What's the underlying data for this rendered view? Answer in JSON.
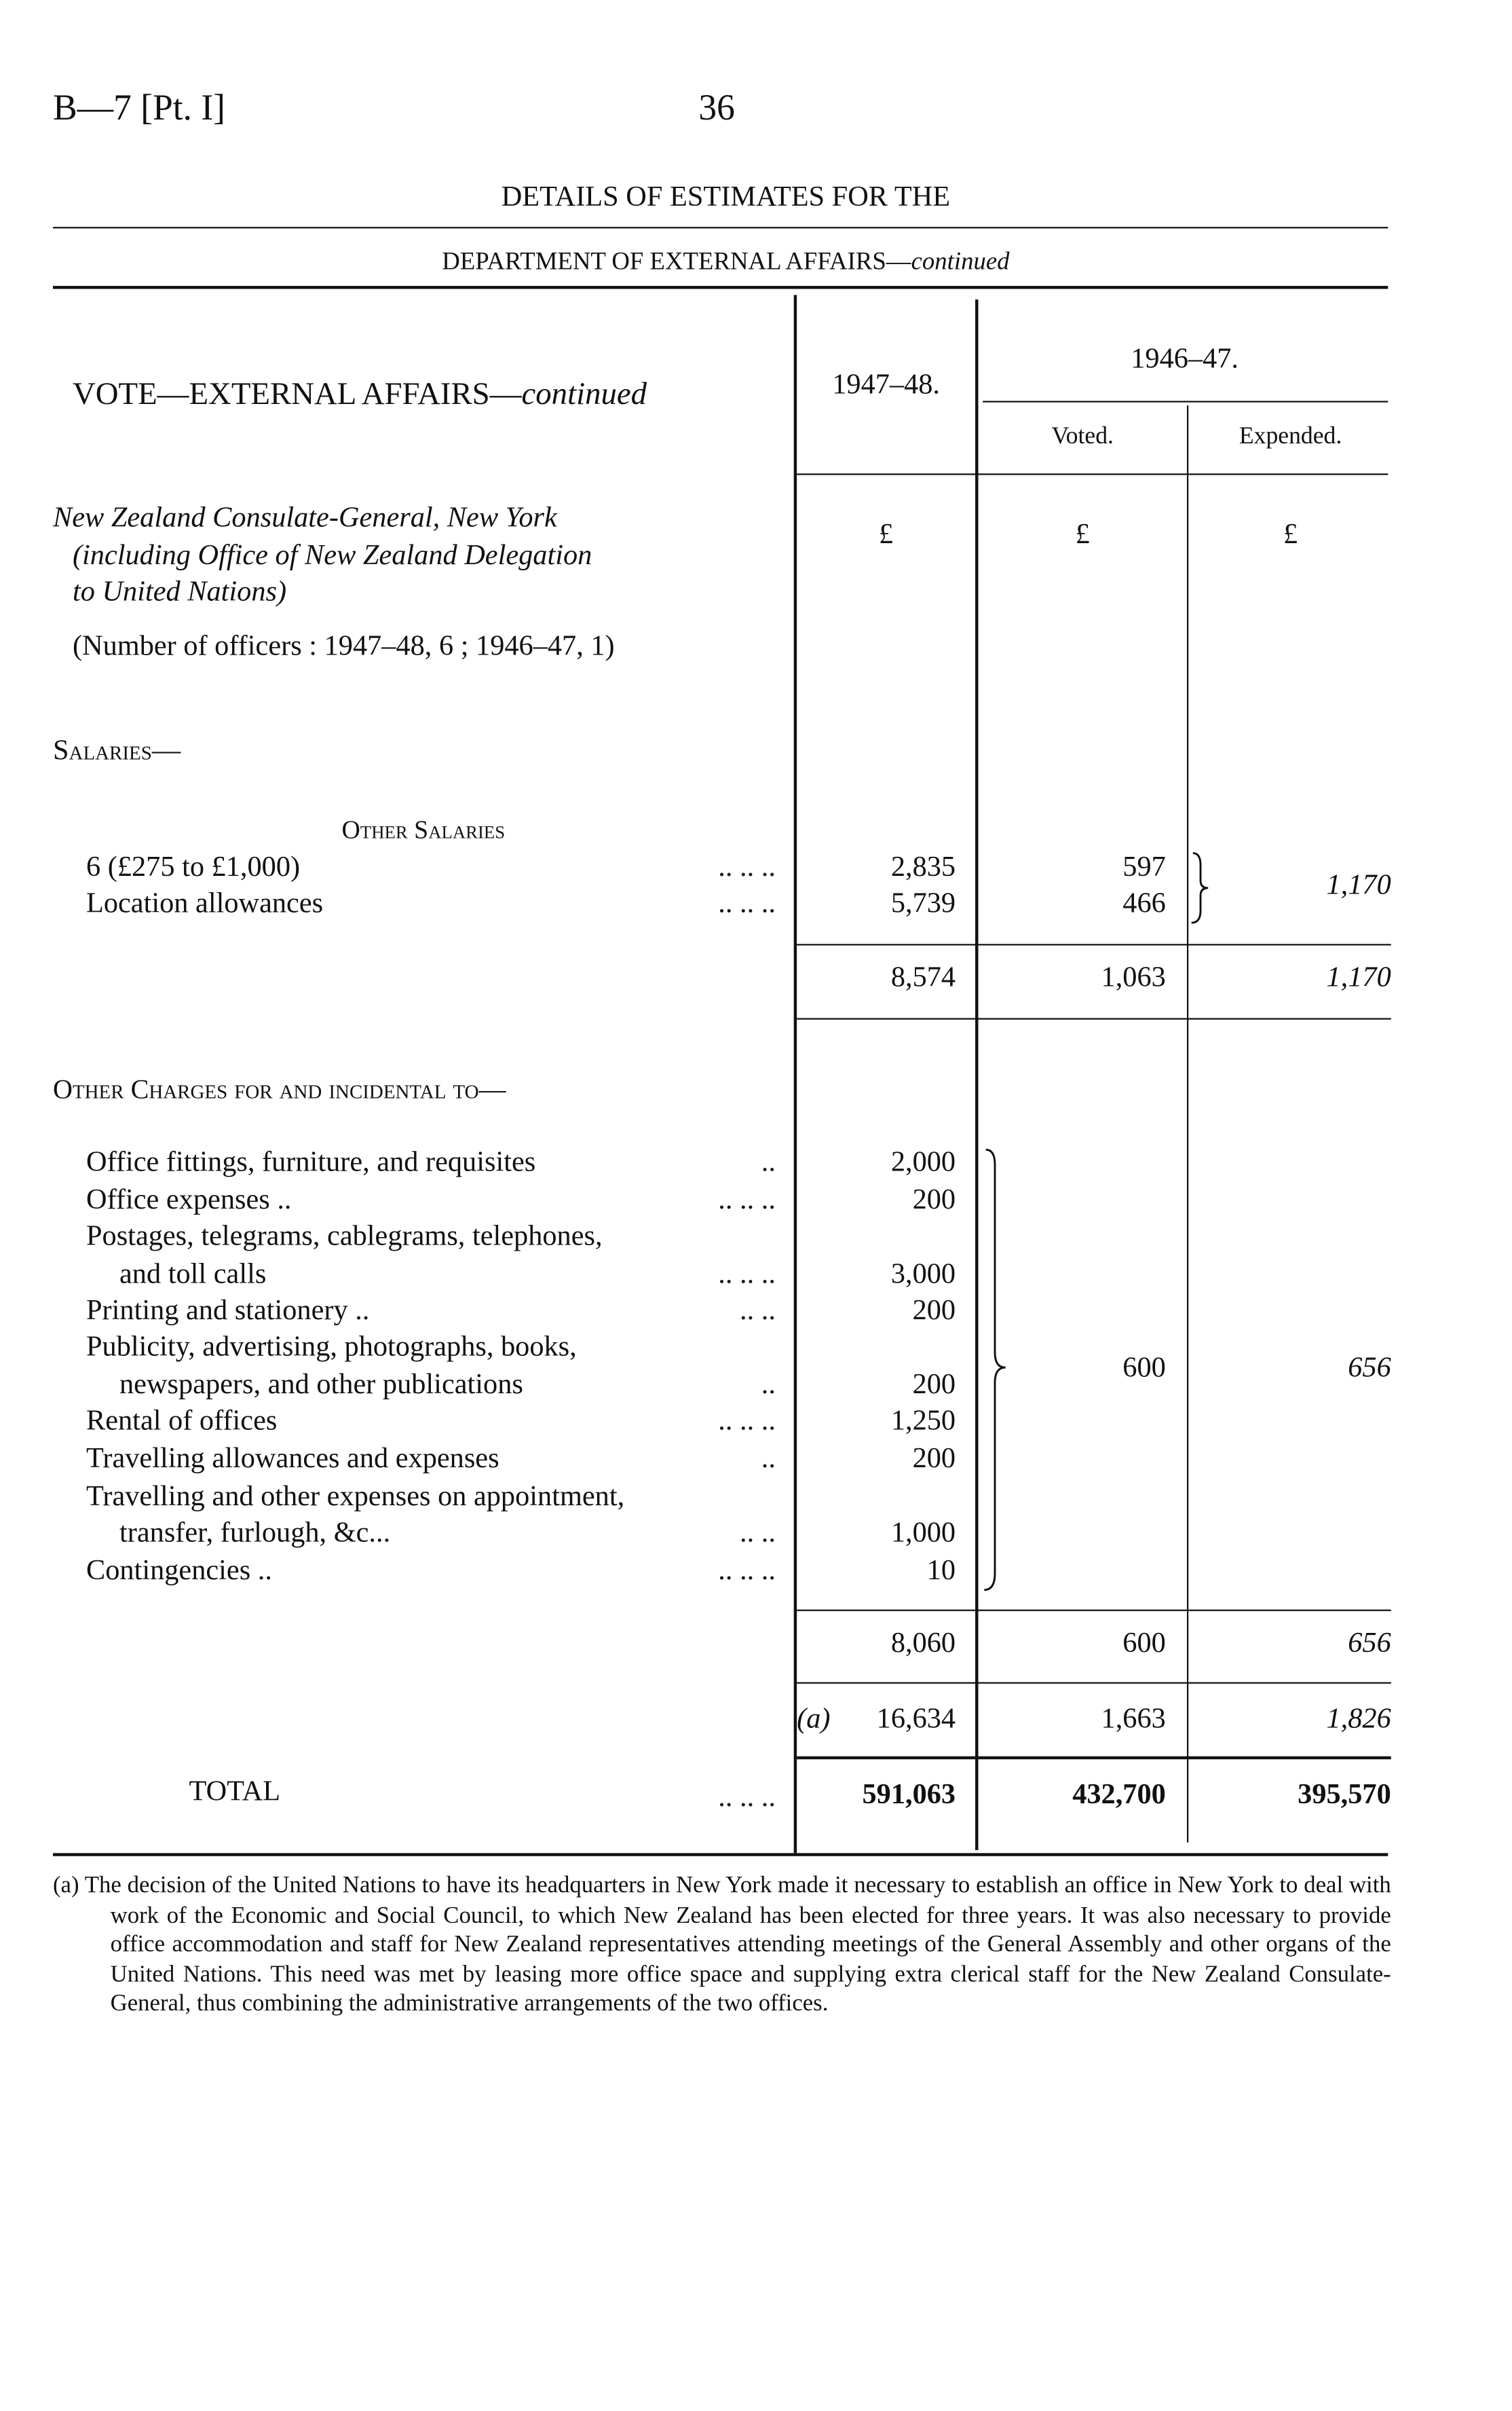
{
  "header": {
    "ref": "B—7 [Pt. I]",
    "page_number": "36"
  },
  "title": "DETAILS OF ESTIMATES FOR THE",
  "subtitle": {
    "main": "DEPARTMENT OF EXTERNAL AFFAIRS—",
    "cont": "continued"
  },
  "table_header": {
    "vote": "VOTE—EXTERNAL  AFFAIRS—",
    "vote_cont": "continued",
    "col_1947": "1947–48.",
    "col_1946": "1946–47.",
    "voted": "Voted.",
    "expended": "Expended.",
    "currency": "£"
  },
  "section": {
    "title_lines": [
      "New Zealand Consulate-General, New York",
      "(including Office of New Zealand Delegation",
      "to United Nations)"
    ],
    "officers": "(Number of officers : 1947–48, 6 ; 1946–47, 1)"
  },
  "salaries": {
    "heading": "Salaries—",
    "subheading": "Other Salaries",
    "rows": [
      {
        "label": "6 (£275 to £1,000)",
        "leader": "..      ..      ..",
        "est": "2,835",
        "voted": "597"
      },
      {
        "label": "Location allowances",
        "leader": "..      ..      ..",
        "est": "5,739",
        "voted": "466"
      }
    ],
    "expended_combined": "1,170",
    "subtotal": {
      "est": "8,574",
      "voted": "1,063",
      "expended": "1,170"
    }
  },
  "other_charges": {
    "heading": "Other Charges for and incidental to—",
    "rows": [
      {
        "lines": [
          "Office fittings, furniture, and requisites"
        ],
        "leader": "..",
        "est": "2,000"
      },
      {
        "lines": [
          "Office expenses .."
        ],
        "leader": "..      ..      ..",
        "est": "200"
      },
      {
        "lines": [
          "Postages, telegrams, cablegrams, telephones,",
          "and toll calls"
        ],
        "leader": "..      ..      ..",
        "est": "3,000"
      },
      {
        "lines": [
          "Printing and stationery .."
        ],
        "leader": "..      ..",
        "est": "200"
      },
      {
        "lines": [
          "Publicity, advertising, photographs, books,",
          "newspapers, and other publications"
        ],
        "leader": "..",
        "est": "200"
      },
      {
        "lines": [
          "Rental of offices"
        ],
        "leader": "..      ..      ..",
        "est": "1,250"
      },
      {
        "lines": [
          "Travelling allowances and expenses"
        ],
        "leader": "..",
        "est": "200"
      },
      {
        "lines": [
          "Travelling and other expenses on appointment,",
          "transfer, furlough, &c..."
        ],
        "leader": "..      ..",
        "est": "1,000"
      },
      {
        "lines": [
          "Contingencies  .."
        ],
        "leader": "..      ..      ..",
        "est": "10"
      }
    ],
    "voted_combined": "600",
    "expended_combined": "656",
    "subtotal": {
      "est": "8,060",
      "voted": "600",
      "expended": "656"
    }
  },
  "section_total": {
    "note": "(a)",
    "est": "16,634",
    "voted": "1,663",
    "expended": "1,826"
  },
  "total": {
    "label": "TOTAL",
    "leader": "..      ..      ..",
    "est": "591,063",
    "voted": "432,700",
    "expended": "395,570"
  },
  "footnote": "(a) The decision of the United Nations to have its headquarters in New York made it necessary to establish an office in New York to deal with work of the Economic and Social Council, to which New Zealand has been elected for three years.  It was also necessary to provide office accommodation and staff for New Zealand representatives attending meetings of the General Assembly and other organs of the United Nations.  This need was met by leasing more office space and supplying extra clerical staff for the New Zealand Consulate-General, thus combining the administrative arrangements of the two offices."
}
